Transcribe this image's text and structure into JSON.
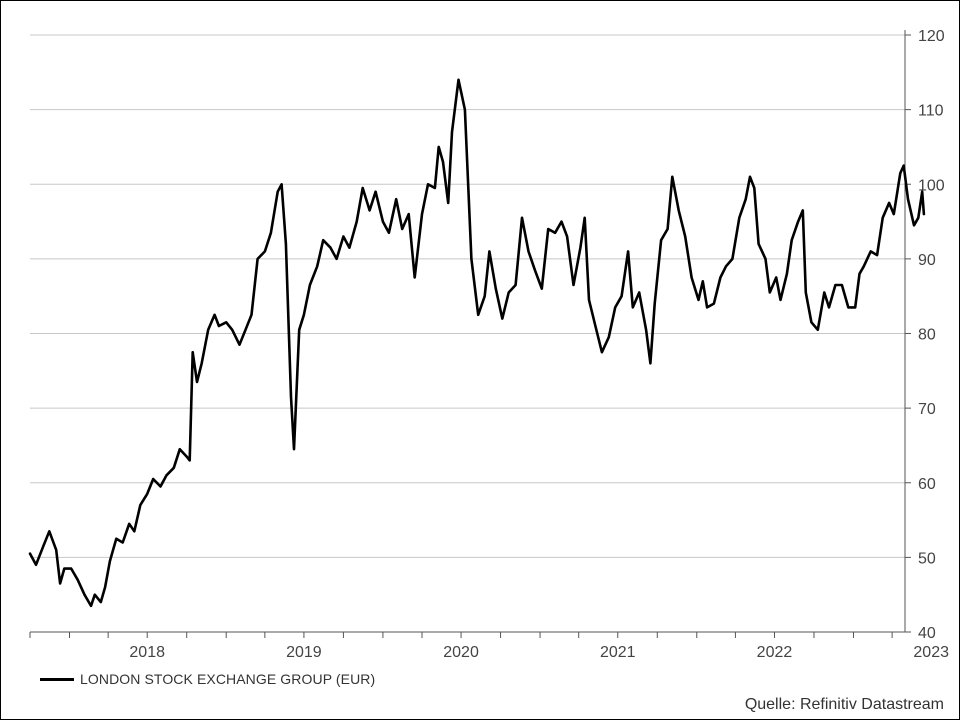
{
  "chart_data": {
    "type": "line",
    "title": "",
    "xlabel": "",
    "ylabel": "",
    "ylim": [
      40,
      120
    ],
    "y_ticks": [
      "40",
      "50",
      "60",
      "70",
      "80",
      "90",
      "100",
      "110",
      "120"
    ],
    "y_axis_side": "right",
    "grid": "horizontal",
    "x_tick_labels": [
      "2018",
      "2019",
      "2020",
      "2021",
      "2022",
      "2023"
    ],
    "xlim": [
      "2017-10",
      "2023-05"
    ],
    "legend_position": "bottom-left",
    "series": [
      {
        "name": "LONDON STOCK EXCHANGE GROUP (EUR)",
        "color": "#000000",
        "points": [
          [
            "2017-10-01",
            50.5
          ],
          [
            "2017-10-15",
            49.0
          ],
          [
            "2017-11-01",
            51.5
          ],
          [
            "2017-11-15",
            53.5
          ],
          [
            "2017-12-01",
            51.0
          ],
          [
            "2017-12-10",
            46.5
          ],
          [
            "2017-12-20",
            48.5
          ],
          [
            "2018-01-05",
            48.5
          ],
          [
            "2018-01-20",
            47.0
          ],
          [
            "2018-02-05",
            45.0
          ],
          [
            "2018-02-20",
            43.5
          ],
          [
            "2018-03-01",
            45.0
          ],
          [
            "2018-03-15",
            44.0
          ],
          [
            "2018-03-25",
            46.0
          ],
          [
            "2018-04-05",
            49.5
          ],
          [
            "2018-04-20",
            52.5
          ],
          [
            "2018-05-05",
            52.0
          ],
          [
            "2018-05-20",
            54.5
          ],
          [
            "2018-06-01",
            53.5
          ],
          [
            "2018-06-15",
            57.0
          ],
          [
            "2018-07-01",
            58.5
          ],
          [
            "2018-07-15",
            60.5
          ],
          [
            "2018-08-01",
            59.5
          ],
          [
            "2018-08-15",
            61.0
          ],
          [
            "2018-09-01",
            62.0
          ],
          [
            "2018-09-15",
            64.5
          ],
          [
            "2018-10-01",
            63.5
          ],
          [
            "2018-10-08",
            63.0
          ],
          [
            "2018-10-15",
            77.5
          ],
          [
            "2018-10-25",
            73.5
          ],
          [
            "2018-11-05",
            76.0
          ],
          [
            "2018-11-20",
            80.5
          ],
          [
            "2018-12-05",
            82.5
          ],
          [
            "2018-12-15",
            81.0
          ],
          [
            "2019-01-01",
            81.5
          ],
          [
            "2019-01-15",
            80.5
          ],
          [
            "2019-02-01",
            78.5
          ],
          [
            "2019-02-15",
            80.5
          ],
          [
            "2019-03-01",
            82.5
          ],
          [
            "2019-03-15",
            90.0
          ],
          [
            "2019-04-01",
            91.0
          ],
          [
            "2019-04-15",
            93.5
          ],
          [
            "2019-05-01",
            99.0
          ],
          [
            "2019-05-10",
            100.0
          ],
          [
            "2019-05-20",
            92.0
          ],
          [
            "2019-06-01",
            71.5
          ],
          [
            "2019-06-08",
            64.5
          ],
          [
            "2019-06-20",
            80.5
          ],
          [
            "2019-07-01",
            82.5
          ],
          [
            "2019-07-15",
            86.5
          ],
          [
            "2019-08-01",
            89.0
          ],
          [
            "2019-08-15",
            92.5
          ],
          [
            "2019-09-01",
            91.5
          ],
          [
            "2019-09-15",
            90.0
          ],
          [
            "2019-10-01",
            93.0
          ],
          [
            "2019-10-15",
            91.5
          ],
          [
            "2019-11-01",
            95.0
          ],
          [
            "2019-11-15",
            99.5
          ],
          [
            "2019-12-01",
            96.5
          ],
          [
            "2019-12-15",
            99.0
          ],
          [
            "2020-01-01",
            95.0
          ],
          [
            "2020-01-15",
            93.5
          ],
          [
            "2020-02-01",
            98.0
          ],
          [
            "2020-02-15",
            94.0
          ],
          [
            "2020-03-01",
            96.0
          ],
          [
            "2020-03-15",
            87.5
          ],
          [
            "2020-04-01",
            96.0
          ],
          [
            "2020-04-15",
            100.0
          ],
          [
            "2020-05-01",
            99.5
          ],
          [
            "2020-05-10",
            105.0
          ],
          [
            "2020-05-20",
            103.0
          ],
          [
            "2020-06-01",
            97.5
          ],
          [
            "2020-06-10",
            107.0
          ],
          [
            "2020-06-25",
            114.0
          ],
          [
            "2020-07-10",
            110.0
          ],
          [
            "2020-07-25",
            90.0
          ],
          [
            "2020-08-10",
            82.5
          ],
          [
            "2020-08-25",
            85.0
          ],
          [
            "2020-09-05",
            91.0
          ],
          [
            "2020-09-20",
            86.0
          ],
          [
            "2020-10-05",
            82.0
          ],
          [
            "2020-10-20",
            85.5
          ],
          [
            "2020-11-05",
            86.5
          ],
          [
            "2020-11-20",
            95.5
          ],
          [
            "2020-12-05",
            91.0
          ],
          [
            "2020-12-20",
            88.5
          ],
          [
            "2021-01-05",
            86.0
          ],
          [
            "2021-01-20",
            94.0
          ],
          [
            "2021-02-05",
            93.5
          ],
          [
            "2021-02-20",
            95.0
          ],
          [
            "2021-03-05",
            93.0
          ],
          [
            "2021-03-20",
            86.5
          ],
          [
            "2021-04-05",
            91.5
          ],
          [
            "2021-04-15",
            95.5
          ],
          [
            "2021-04-25",
            84.5
          ],
          [
            "2021-05-10",
            81.0
          ],
          [
            "2021-05-25",
            77.5
          ],
          [
            "2021-06-10",
            79.5
          ],
          [
            "2021-06-25",
            83.5
          ],
          [
            "2021-07-10",
            85.0
          ],
          [
            "2021-07-25",
            91.0
          ],
          [
            "2021-08-05",
            83.5
          ],
          [
            "2021-08-20",
            85.5
          ],
          [
            "2021-09-05",
            80.5
          ],
          [
            "2021-09-15",
            76.0
          ],
          [
            "2021-09-25",
            84.0
          ],
          [
            "2021-10-10",
            92.5
          ],
          [
            "2021-10-25",
            94.0
          ],
          [
            "2021-11-05",
            101.0
          ],
          [
            "2021-11-20",
            96.5
          ],
          [
            "2021-12-05",
            93.0
          ],
          [
            "2021-12-20",
            87.5
          ],
          [
            "2022-01-05",
            84.5
          ],
          [
            "2022-01-15",
            87.0
          ],
          [
            "2022-01-25",
            83.5
          ],
          [
            "2022-02-10",
            84.0
          ],
          [
            "2022-02-25",
            87.5
          ],
          [
            "2022-03-10",
            89.0
          ],
          [
            "2022-03-25",
            90.0
          ],
          [
            "2022-04-10",
            95.5
          ],
          [
            "2022-04-25",
            98.0
          ],
          [
            "2022-05-05",
            101.0
          ],
          [
            "2022-05-15",
            99.5
          ],
          [
            "2022-05-25",
            92.0
          ],
          [
            "2022-06-10",
            90.0
          ],
          [
            "2022-06-20",
            85.5
          ],
          [
            "2022-07-05",
            87.5
          ],
          [
            "2022-07-15",
            84.5
          ],
          [
            "2022-07-30",
            88.0
          ],
          [
            "2022-08-10",
            92.5
          ],
          [
            "2022-08-25",
            95.0
          ],
          [
            "2022-09-05",
            96.5
          ],
          [
            "2022-09-12",
            85.5
          ],
          [
            "2022-09-25",
            81.5
          ],
          [
            "2022-10-10",
            80.5
          ],
          [
            "2022-10-25",
            85.5
          ],
          [
            "2022-11-05",
            83.5
          ],
          [
            "2022-11-20",
            86.5
          ],
          [
            "2022-12-05",
            86.5
          ],
          [
            "2022-12-20",
            83.5
          ],
          [
            "2023-01-05",
            83.5
          ],
          [
            "2023-01-15",
            88.0
          ],
          [
            "2023-01-25",
            89.0
          ],
          [
            "2023-02-10",
            91.0
          ],
          [
            "2023-02-25",
            90.5
          ],
          [
            "2023-03-10",
            95.5
          ],
          [
            "2023-03-25",
            97.5
          ],
          [
            "2023-04-05",
            96.0
          ],
          [
            "2023-04-20",
            101.5
          ],
          [
            "2023-04-28",
            102.5
          ],
          [
            "2023-05-08",
            98.0
          ],
          [
            "2023-05-22",
            94.5
          ],
          [
            "2023-06-01",
            95.5
          ],
          [
            "2023-06-10",
            99.0
          ],
          [
            "2023-06-14",
            96.0
          ]
        ]
      }
    ]
  },
  "source": "Quelle: Refinitiv Datastream"
}
